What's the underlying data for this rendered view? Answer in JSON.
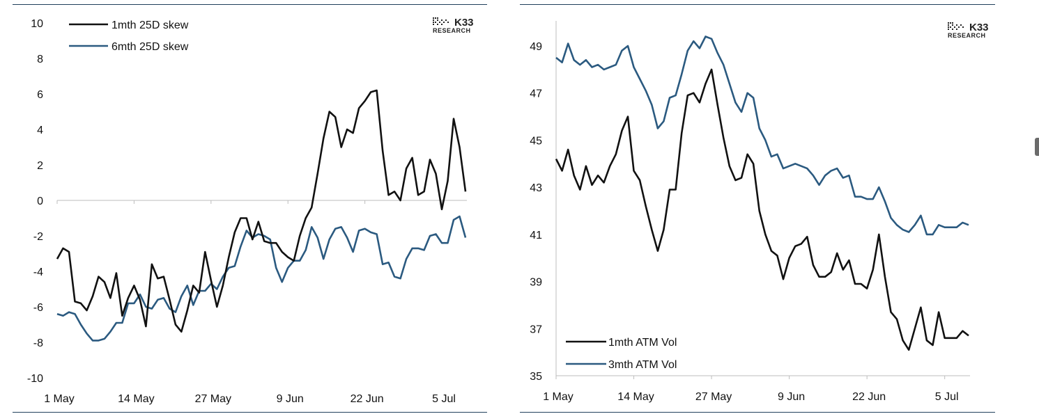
{
  "colors": {
    "black_series": "#111111",
    "blue_series": "#2b5a80",
    "rule": "#1f3f5a"
  },
  "logo": {
    "name": "K33",
    "sub": "RESEARCH"
  },
  "chart_data": [
    {
      "type": "line",
      "title": "",
      "x_tick_labels": [
        "1 May",
        "14 May",
        "27 May",
        "9 Jun",
        "22 Jun",
        "5 Jul"
      ],
      "x_tick_index": [
        0,
        13,
        26,
        39,
        52,
        65
      ],
      "ylim": [
        -10,
        10
      ],
      "y_ticks": [
        10,
        8,
        6,
        4,
        2,
        0,
        -2,
        -4,
        -6,
        -8,
        -10
      ],
      "series": [
        {
          "name": "1mth 25D skew",
          "color": "#111111",
          "values": [
            -3.3,
            -2.7,
            -2.9,
            -5.7,
            -5.8,
            -6.2,
            -5.4,
            -4.3,
            -4.6,
            -5.5,
            -4.1,
            -6.5,
            -5.5,
            -4.8,
            -5.6,
            -7.1,
            -3.6,
            -4.4,
            -4.3,
            -5.6,
            -7.0,
            -7.4,
            -6.2,
            -4.8,
            -5.2,
            -2.9,
            -4.5,
            -6.0,
            -4.8,
            -3.2,
            -1.8,
            -1.0,
            -1.0,
            -2.2,
            -1.2,
            -2.3,
            -2.4,
            -2.4,
            -2.9,
            -3.2,
            -3.4,
            -2.0,
            -1.0,
            -0.4,
            1.5,
            3.5,
            5.0,
            4.7,
            3.0,
            4.0,
            3.8,
            5.2,
            5.6,
            6.1,
            6.2,
            2.8,
            0.3,
            0.5,
            0.0,
            1.8,
            2.4,
            0.3,
            0.5,
            2.3,
            1.5,
            -0.5,
            1.1,
            4.6,
            3.0,
            0.5
          ]
        },
        {
          "name": "6mth 25D skew",
          "color": "#2b5a80",
          "values": [
            -6.4,
            -6.5,
            -6.3,
            -6.4,
            -7.0,
            -7.5,
            -7.9,
            -7.9,
            -7.8,
            -7.4,
            -6.9,
            -6.9,
            -5.8,
            -5.8,
            -5.3,
            -6.0,
            -6.1,
            -5.6,
            -5.5,
            -6.1,
            -6.3,
            -5.4,
            -4.8,
            -5.9,
            -5.1,
            -5.1,
            -4.7,
            -5.0,
            -4.3,
            -3.8,
            -3.7,
            -2.6,
            -1.7,
            -2.1,
            -1.9,
            -2.0,
            -2.2,
            -3.8,
            -4.6,
            -3.8,
            -3.4,
            -3.4,
            -2.8,
            -1.5,
            -2.1,
            -3.3,
            -2.2,
            -1.6,
            -1.5,
            -2.1,
            -2.9,
            -1.7,
            -1.6,
            -1.8,
            -1.9,
            -3.6,
            -3.5,
            -4.3,
            -4.4,
            -3.3,
            -2.7,
            -2.7,
            -2.8,
            -2.0,
            -1.9,
            -2.4,
            -2.4,
            -1.1,
            -0.9,
            -2.1
          ]
        }
      ],
      "legend": "top-left",
      "grid": false
    },
    {
      "type": "line",
      "title": "",
      "x_tick_labels": [
        "1 May",
        "14 May",
        "27 May",
        "9 Jun",
        "22 Jun",
        "5 Jul"
      ],
      "x_tick_index": [
        0,
        13,
        26,
        39,
        52,
        65
      ],
      "ylim": [
        35,
        50
      ],
      "y_ticks": [
        49,
        47,
        45,
        43,
        41,
        39,
        37,
        35
      ],
      "series": [
        {
          "name": "1mth ATM Vol",
          "color": "#111111",
          "values": [
            44.2,
            43.7,
            44.6,
            43.5,
            42.9,
            43.9,
            43.1,
            43.5,
            43.2,
            43.9,
            44.4,
            45.4,
            46.0,
            43.7,
            43.3,
            42.2,
            41.2,
            40.3,
            41.2,
            42.9,
            42.9,
            45.3,
            46.9,
            47.0,
            46.6,
            47.4,
            48.0,
            46.5,
            45.1,
            43.9,
            43.3,
            43.4,
            44.4,
            44.0,
            42.0,
            41.0,
            40.3,
            40.1,
            39.1,
            40.0,
            40.5,
            40.6,
            40.9,
            39.7,
            39.2,
            39.2,
            39.4,
            40.2,
            39.5,
            39.9,
            38.9,
            38.9,
            38.7,
            39.5,
            41.0,
            39.2,
            37.7,
            37.4,
            36.5,
            36.1,
            37.0,
            37.9,
            36.5,
            36.3,
            37.7,
            36.6,
            36.6,
            36.6,
            36.9,
            36.7
          ]
        },
        {
          "name": "3mth ATM Vol",
          "color": "#2b5a80",
          "values": [
            48.5,
            48.3,
            49.1,
            48.4,
            48.2,
            48.4,
            48.1,
            48.2,
            48.0,
            48.1,
            48.2,
            48.8,
            49.0,
            48.1,
            47.6,
            47.1,
            46.5,
            45.5,
            45.8,
            46.8,
            46.9,
            47.8,
            48.8,
            49.2,
            48.9,
            49.4,
            49.3,
            48.7,
            48.2,
            47.4,
            46.6,
            46.2,
            47.0,
            46.8,
            45.5,
            45.0,
            44.3,
            44.4,
            43.8,
            43.9,
            44.0,
            43.9,
            43.8,
            43.5,
            43.1,
            43.5,
            43.7,
            43.8,
            43.4,
            43.5,
            42.6,
            42.6,
            42.5,
            42.5,
            43.0,
            42.4,
            41.7,
            41.4,
            41.2,
            41.1,
            41.4,
            41.8,
            41.0,
            41.0,
            41.4,
            41.3,
            41.3,
            41.3,
            41.5,
            41.4
          ]
        }
      ],
      "legend": "bottom-left",
      "grid": false
    }
  ]
}
